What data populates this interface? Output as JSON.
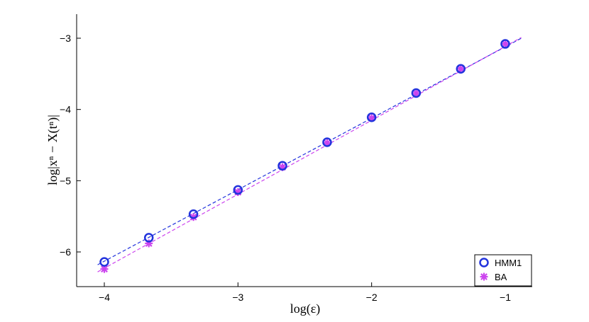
{
  "chart_data": {
    "type": "scatter",
    "title": "",
    "xlabel": "log(ε)",
    "ylabel": "log|xⁿ − X(tⁿ)|",
    "xlim": [
      -4.2,
      -0.8
    ],
    "ylim": [
      -6.5,
      -2.75
    ],
    "x_ticks": [
      "−4",
      "−3",
      "−2",
      "−1"
    ],
    "y_ticks": [
      "−6",
      "−5",
      "−4",
      "−3"
    ],
    "grid": false,
    "legend_position": "bottom-right",
    "series": [
      {
        "name": "HMM1",
        "marker": "circle",
        "color": "#2233dd",
        "x": [
          -4.0,
          -3.667,
          -3.333,
          -3.0,
          -2.667,
          -2.333,
          -2.0,
          -1.667,
          -1.333,
          -1.0
        ],
        "y": [
          -6.14,
          -5.8,
          -5.47,
          -5.13,
          -4.79,
          -4.46,
          -4.11,
          -3.77,
          -3.43,
          -3.08
        ],
        "fit": {
          "x": [
            -4.05,
            -0.88
          ],
          "y": [
            -6.18,
            -3.0
          ]
        }
      },
      {
        "name": "BA",
        "marker": "asterisk",
        "color": "#cc44ee",
        "x": [
          -4.0,
          -3.667,
          -3.333,
          -3.0,
          -2.667,
          -2.333,
          -2.0,
          -1.667,
          -1.333,
          -1.0
        ],
        "y": [
          -6.24,
          -5.88,
          -5.51,
          -5.16,
          -4.81,
          -4.47,
          -4.12,
          -3.77,
          -3.43,
          -3.08
        ],
        "fit": {
          "x": [
            -4.05,
            -0.88
          ],
          "y": [
            -6.28,
            -2.99
          ]
        }
      }
    ]
  }
}
